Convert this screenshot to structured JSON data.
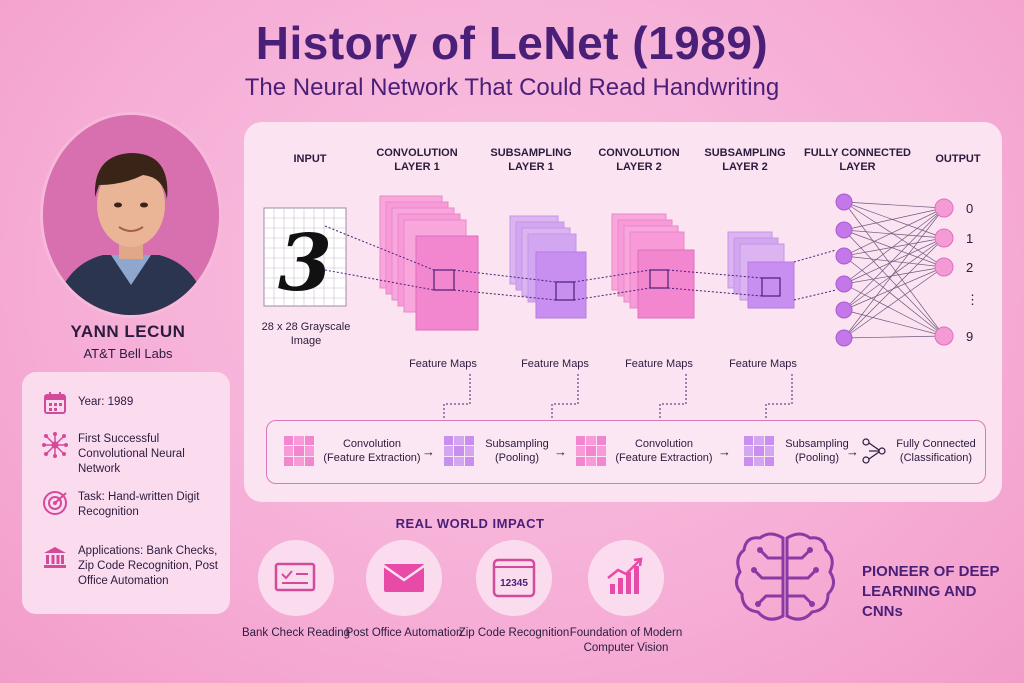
{
  "title": "History of LeNet (1989)",
  "subtitle": "The Neural Network That Could Read Handwriting",
  "person": {
    "name": "YANN LECUN",
    "org": "AT&T Bell Labs"
  },
  "facts": [
    {
      "icon": "calendar-icon",
      "text": "Year: 1989"
    },
    {
      "icon": "neural-network-icon",
      "text": "First Successful Convolutional Neural Network"
    },
    {
      "icon": "target-icon",
      "text": "Task: Hand-written Digit Recognition"
    },
    {
      "icon": "bank-icon",
      "text": "Applications: Bank Checks, Zip Code Recognition, Post Office Automation"
    }
  ],
  "diagram": {
    "stages": {
      "input": "INPUT",
      "conv1": "CONVOLUTION LAYER 1",
      "sub1": "SUBSAMPLING LAYER 1",
      "conv2": "CONVOLUTION LAYER 2",
      "sub2": "SUBSAMPLING LAYER 2",
      "fc": "FULLY CONNECTED LAYER",
      "output": "OUTPUT"
    },
    "input_digit": "3",
    "input_caption": "28 x 28 Grayscale Image",
    "feature_maps_label": "Feature Maps",
    "output_labels": [
      "0",
      "1",
      "2",
      "⋮",
      "9"
    ]
  },
  "flow": [
    {
      "name": "Convolution",
      "detail": "(Feature Extraction)"
    },
    {
      "name": "Subsampling",
      "detail": "(Pooling)"
    },
    {
      "name": "Convolution",
      "detail": "(Feature Extraction)"
    },
    {
      "name": "Subsampling",
      "detail": "(Pooling)"
    },
    {
      "name": "Fully Connected",
      "detail": "(Classification)"
    }
  ],
  "flow_arrow": "→",
  "impact": {
    "title": "REAL WORLD IMPACT",
    "items": [
      {
        "icon": "bank-check-icon",
        "label": "Bank Check Reading"
      },
      {
        "icon": "envelope-icon",
        "label": "Post Office Automation"
      },
      {
        "icon": "zip-code-icon",
        "label": "Zip Code Recognition",
        "code": "12345"
      },
      {
        "icon": "chart-growth-icon",
        "label": "Foundation of Modern Computer Vision"
      }
    ]
  },
  "pioneer": "PIONEER OF DEEP LEARNING AND CNNs",
  "colors": {
    "title": "#4a1f78",
    "pink": "#f286cf",
    "purple": "#c98ff0",
    "node": "#c477e8",
    "output_node": "#f49ad4"
  }
}
